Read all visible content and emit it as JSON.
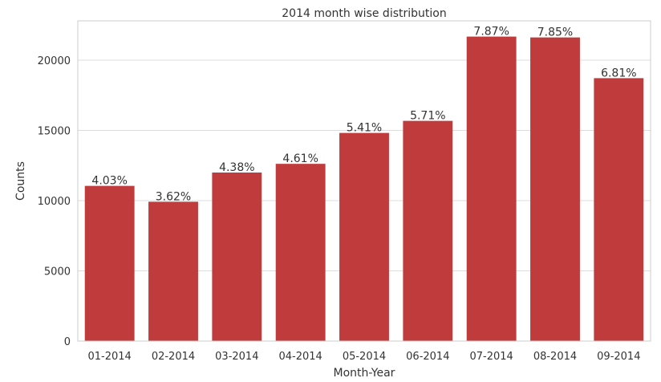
{
  "chart_data": {
    "type": "bar",
    "title": "2014 month wise distribution",
    "xlabel": "Month-Year",
    "ylabel": "Counts",
    "categories": [
      "01-2014",
      "02-2014",
      "03-2014",
      "04-2014",
      "05-2014",
      "06-2014",
      "07-2014",
      "08-2014",
      "09-2014"
    ],
    "values": [
      11050,
      9920,
      12000,
      12620,
      14820,
      15680,
      21680,
      21620,
      18720
    ],
    "data_labels": [
      "4.03%",
      "3.62%",
      "4.38%",
      "4.61%",
      "5.41%",
      "5.71%",
      "7.87%",
      "7.85%",
      "6.81%"
    ],
    "yticks": [
      0,
      5000,
      10000,
      15000,
      20000
    ],
    "ylim": [
      0,
      22800
    ],
    "grid": "horizontal",
    "bar_color": "#c03b3c"
  }
}
